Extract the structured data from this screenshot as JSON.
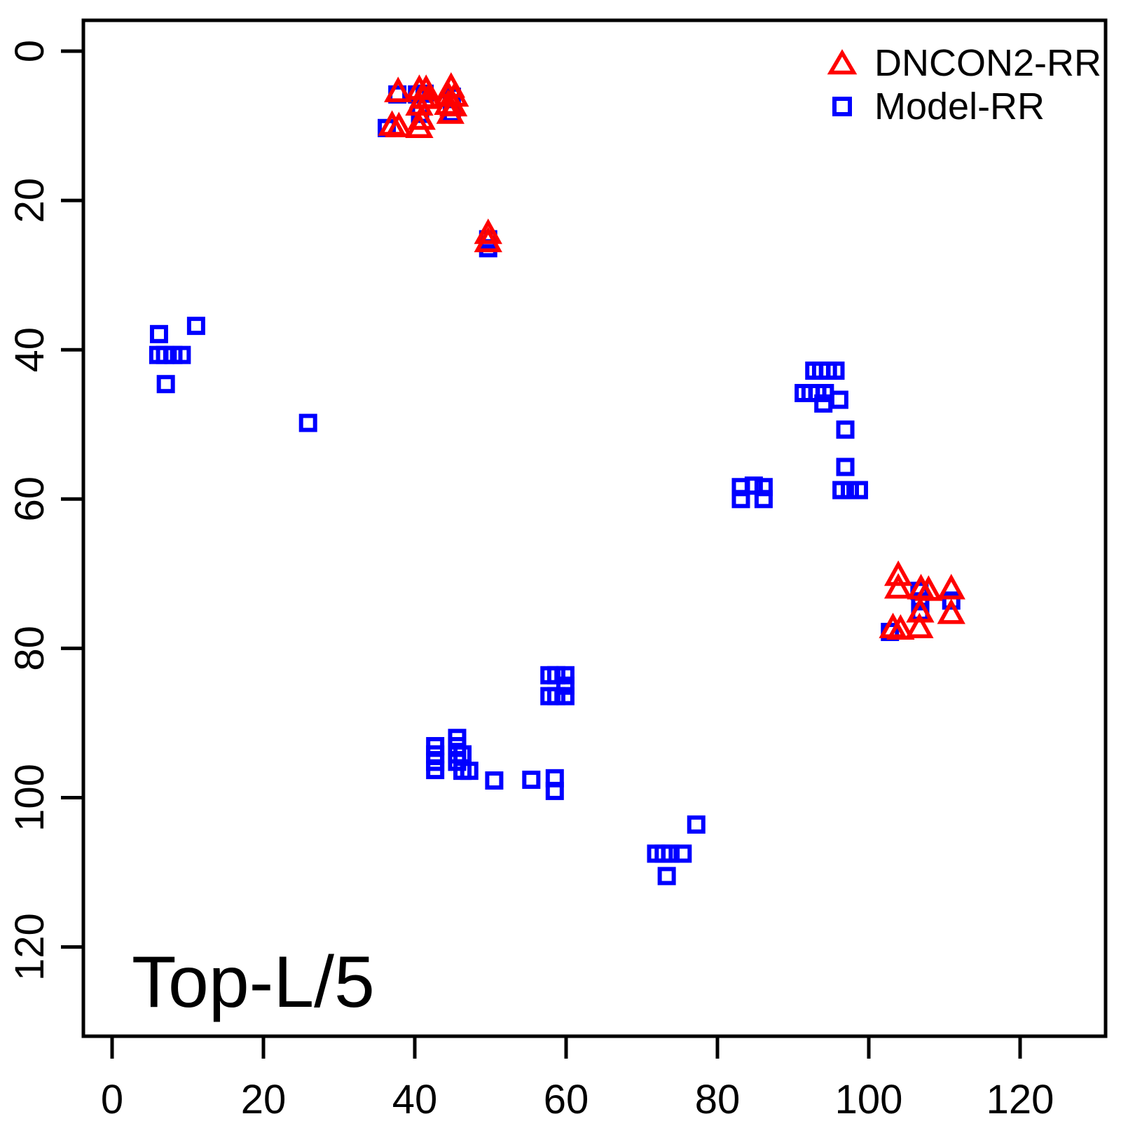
{
  "figure": {
    "background": "#FFFFFF",
    "border_color": "#000000"
  },
  "chart_data": {
    "type": "scatter",
    "title": "",
    "annotation": "Top-L/5",
    "xlabel": "",
    "ylabel": "",
    "x_ticks": [
      0,
      20,
      40,
      60,
      80,
      100,
      120
    ],
    "y_ticks": [
      0,
      20,
      40,
      60,
      80,
      100,
      120
    ],
    "xlim": [
      -4,
      131
    ],
    "ylim": [
      132,
      -4
    ],
    "y_axis_inverted": true,
    "grid": false,
    "legend_position": "top-right",
    "series": [
      {
        "name": "DNCON2-RR",
        "marker": "open-triangle",
        "color": "#FF0000",
        "points": [
          [
            37.8,
            5.5
          ],
          [
            40.6,
            5.2
          ],
          [
            41.5,
            5.2
          ],
          [
            41.1,
            6.3
          ],
          [
            41.8,
            6.4
          ],
          [
            40.6,
            7.3
          ],
          [
            40.9,
            9.2
          ],
          [
            44.8,
            4.9
          ],
          [
            44.4,
            6.0
          ],
          [
            45.3,
            6.1
          ],
          [
            44.4,
            7.2
          ],
          [
            45.1,
            7.4
          ],
          [
            44.7,
            8.4
          ],
          [
            37.0,
            10.0
          ],
          [
            37.9,
            10.2
          ],
          [
            40.6,
            10.3
          ],
          [
            49.7,
            24.5
          ],
          [
            49.7,
            25.6
          ],
          [
            103.9,
            70.3
          ],
          [
            103.9,
            72.0
          ],
          [
            106.9,
            72.1
          ],
          [
            107.9,
            72.3
          ],
          [
            110.9,
            72.1
          ],
          [
            106.8,
            75.2
          ],
          [
            110.9,
            75.4
          ],
          [
            103.2,
            77.3
          ],
          [
            104.2,
            77.5
          ],
          [
            106.7,
            77.3
          ]
        ]
      },
      {
        "name": "Model-RR",
        "marker": "open-square",
        "color": "#0000FF",
        "points": [
          [
            37.7,
            5.8
          ],
          [
            40.3,
            5.8
          ],
          [
            41.3,
            5.7
          ],
          [
            40.7,
            8.4
          ],
          [
            44.9,
            6.1
          ],
          [
            44.9,
            8.3
          ],
          [
            36.3,
            10.3
          ],
          [
            49.7,
            25.2
          ],
          [
            49.7,
            26.4
          ],
          [
            6.2,
            37.9
          ],
          [
            11.1,
            36.8
          ],
          [
            6.1,
            40.7
          ],
          [
            7.0,
            40.7
          ],
          [
            8.1,
            40.7
          ],
          [
            9.2,
            40.7
          ],
          [
            7.1,
            44.6
          ],
          [
            25.9,
            49.8
          ],
          [
            92.8,
            42.8
          ],
          [
            93.7,
            42.8
          ],
          [
            94.6,
            42.8
          ],
          [
            95.6,
            42.8
          ],
          [
            91.4,
            45.8
          ],
          [
            92.3,
            45.8
          ],
          [
            93.2,
            45.8
          ],
          [
            94.2,
            45.8
          ],
          [
            94.0,
            47.2
          ],
          [
            96.1,
            46.7
          ],
          [
            96.9,
            50.7
          ],
          [
            96.9,
            55.7
          ],
          [
            96.4,
            58.8
          ],
          [
            97.5,
            58.8
          ],
          [
            98.7,
            58.8
          ],
          [
            83.1,
            58.4
          ],
          [
            83.1,
            60.0
          ],
          [
            84.8,
            58.2
          ],
          [
            86.1,
            58.4
          ],
          [
            86.1,
            60.0
          ],
          [
            106.7,
            72.3
          ],
          [
            106.8,
            73.7
          ],
          [
            106.8,
            75.1
          ],
          [
            110.9,
            73.6
          ],
          [
            102.8,
            77.8
          ],
          [
            57.8,
            83.6
          ],
          [
            58.7,
            83.6
          ],
          [
            59.9,
            83.6
          ],
          [
            57.8,
            86.4
          ],
          [
            58.7,
            86.4
          ],
          [
            59.9,
            86.4
          ],
          [
            59.9,
            85.0
          ],
          [
            42.7,
            93.1
          ],
          [
            42.7,
            94.2
          ],
          [
            42.7,
            95.2
          ],
          [
            42.7,
            96.3
          ],
          [
            45.6,
            92.0
          ],
          [
            45.6,
            93.1
          ],
          [
            45.6,
            94.2
          ],
          [
            45.6,
            95.2
          ],
          [
            46.3,
            94.2
          ],
          [
            46.3,
            96.4
          ],
          [
            47.2,
            96.4
          ],
          [
            50.5,
            97.7
          ],
          [
            55.4,
            97.6
          ],
          [
            58.5,
            97.4
          ],
          [
            58.5,
            99.1
          ],
          [
            77.2,
            103.6
          ],
          [
            71.9,
            107.5
          ],
          [
            72.9,
            107.5
          ],
          [
            73.8,
            107.5
          ],
          [
            75.4,
            107.5
          ],
          [
            73.3,
            110.5
          ]
        ]
      }
    ]
  }
}
